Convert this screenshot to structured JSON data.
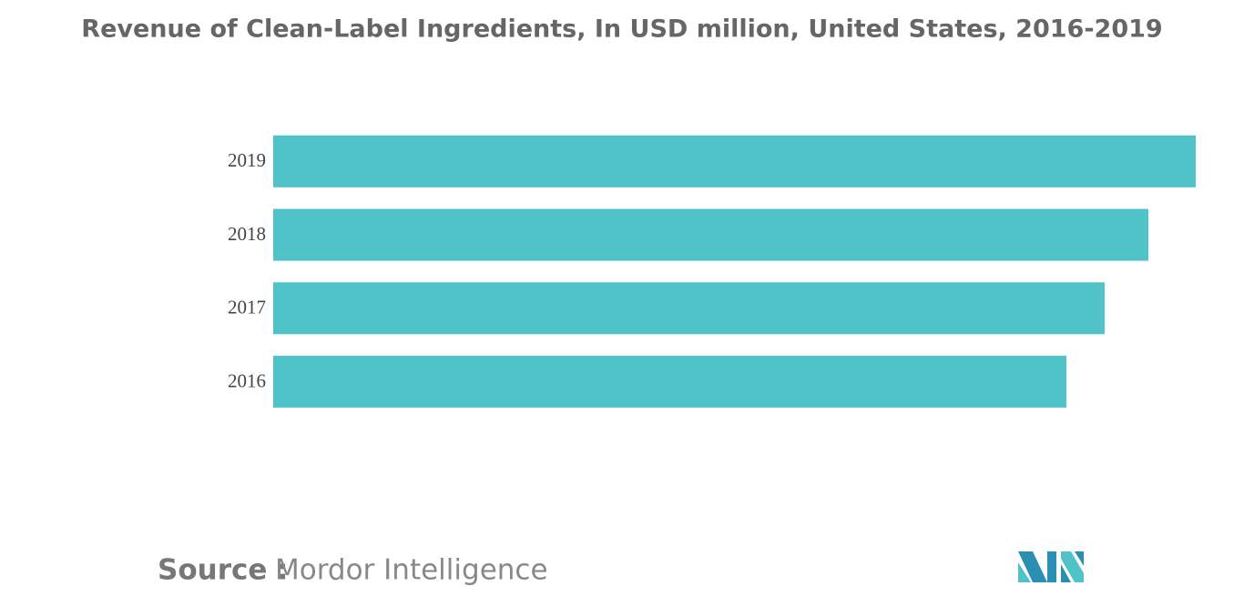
{
  "chart_data": {
    "type": "hbar",
    "title": "Revenue of Clean-Label Ingredients, In USD million, United States, 2016-2019",
    "categories": [
      "2019",
      "2018",
      "2017",
      "2016"
    ],
    "values": [
      1013,
      961,
      913,
      871
    ],
    "color": "#50c3c9",
    "xlim": [
      0,
      1013
    ],
    "source_label": "Source :",
    "source": "Mordor Intelligence"
  }
}
